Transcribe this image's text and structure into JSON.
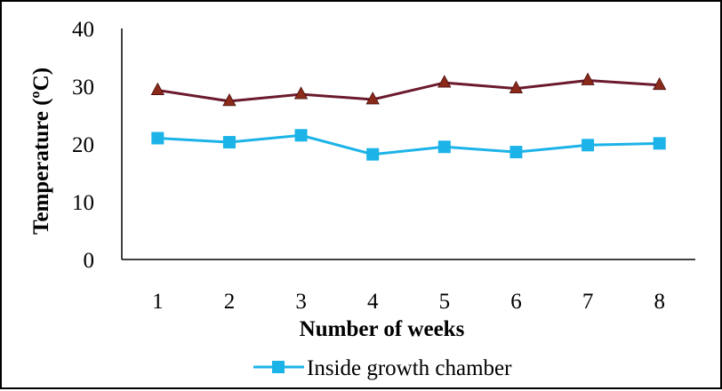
{
  "chart_data": {
    "type": "line",
    "xlabel": "Number of weeks",
    "ylabel": "Temperature (ºC)",
    "categories": [
      "1",
      "2",
      "3",
      "4",
      "5",
      "6",
      "7",
      "8"
    ],
    "yticks": [
      "0",
      "10",
      "20",
      "30",
      "40"
    ],
    "ylim": [
      0,
      40
    ],
    "grid": false,
    "legend_position": "bottom",
    "series": [
      {
        "name": "Inside growth chamber",
        "marker": "square",
        "color": "#1cb3e8",
        "values": [
          21,
          20.3,
          21.5,
          18.2,
          19.5,
          18.6,
          19.8,
          20.1
        ]
      },
      {
        "name": "",
        "marker": "triangle",
        "color": "#6b1a2c",
        "marker_color": "#8b2a1a",
        "values": [
          29.3,
          27.4,
          28.6,
          27.7,
          30.6,
          29.6,
          31,
          30.2
        ]
      }
    ]
  }
}
